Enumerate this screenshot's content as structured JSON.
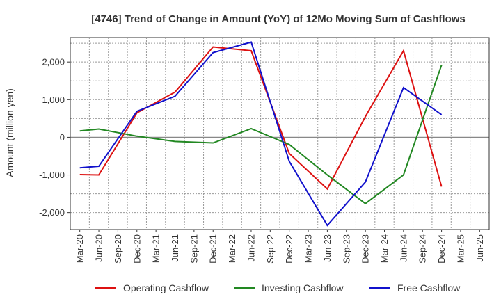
{
  "chart_data": {
    "type": "line",
    "title": "[4746]  Trend of Change in Amount (YoY) of 12Mo Moving Sum of Cashflows",
    "xlabel": "",
    "ylabel": "Amount (million yen)",
    "ylim": [
      -2450,
      2650
    ],
    "yticks": [
      2000,
      1000,
      0,
      -1000,
      -2000
    ],
    "ytick_labels": [
      "2,000",
      "1,000",
      "0",
      "-1,000",
      "-2,000"
    ],
    "categories": [
      "Mar-20",
      "Jun-20",
      "Sep-20",
      "Dec-20",
      "Mar-21",
      "Jun-21",
      "Sep-21",
      "Dec-21",
      "Mar-22",
      "Jun-22",
      "Sep-22",
      "Dec-22",
      "Mar-23",
      "Jun-23",
      "Sep-23",
      "Dec-23",
      "Mar-24",
      "Jun-24",
      "Sep-24",
      "Dec-24",
      "Mar-25",
      "Jun-25"
    ],
    "series": [
      {
        "name": "Operating Cashflow",
        "color": "#dd1111",
        "values": [
          -990,
          -1000,
          null,
          650,
          null,
          1200,
          null,
          2400,
          null,
          2300,
          null,
          -430,
          null,
          -1370,
          null,
          550,
          null,
          2300,
          null,
          -1310,
          null,
          null
        ]
      },
      {
        "name": "Investing Cashflow",
        "color": "#228822",
        "values": [
          170,
          220,
          null,
          30,
          null,
          -110,
          null,
          -150,
          null,
          230,
          null,
          -190,
          null,
          -1000,
          null,
          -1760,
          null,
          -1000,
          null,
          1920,
          null,
          null
        ]
      },
      {
        "name": "Free Cashflow",
        "color": "#1111cc",
        "values": [
          -810,
          -770,
          null,
          690,
          null,
          1090,
          null,
          2250,
          null,
          2530,
          null,
          -640,
          null,
          -2340,
          null,
          -1190,
          null,
          1320,
          null,
          600,
          null,
          null
        ]
      }
    ],
    "grid": true,
    "legend": "bottom"
  }
}
